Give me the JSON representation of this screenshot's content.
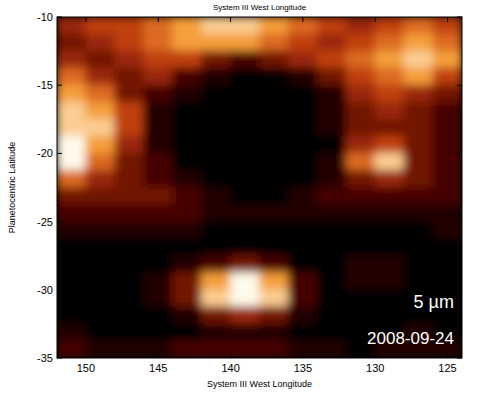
{
  "chart_data": {
    "type": "heatmap",
    "title": "System III West Longitude",
    "x_label": "System III West Longitude",
    "y_label": "Planetocentric Latitude",
    "annotations": [
      "5 µm",
      "2008-09-24"
    ],
    "xlim": [
      152,
      124
    ],
    "xticks": [
      150,
      145,
      140,
      135,
      130,
      125
    ],
    "ylim": [
      -10,
      -35
    ],
    "yticks": [
      -10,
      -15,
      -20,
      -25,
      -30,
      -35
    ],
    "zlim": [
      0,
      9
    ],
    "x": [
      151,
      149,
      147,
      145,
      143,
      141,
      139,
      137,
      135,
      133,
      131,
      129,
      127,
      125
    ],
    "y": [
      -10.625,
      -11.875,
      -13.125,
      -14.375,
      -15.625,
      -16.875,
      -18.125,
      -19.375,
      -20.625,
      -21.875,
      -23.125,
      -24.375,
      -25.625,
      -26.875,
      -28.125,
      -29.375,
      -30.625,
      -31.875,
      -33.125,
      -34.375
    ],
    "cells": [
      [
        4,
        5,
        5,
        6,
        7,
        8,
        8,
        7,
        6,
        5,
        4,
        5,
        6,
        5
      ],
      [
        3,
        4,
        5,
        6,
        7,
        7,
        7,
        6,
        5,
        4,
        5,
        6,
        7,
        6
      ],
      [
        4,
        3,
        4,
        5,
        5,
        3,
        2,
        3,
        4,
        5,
        6,
        7,
        8,
        7
      ],
      [
        6,
        4,
        3,
        4,
        2,
        1,
        0,
        0,
        1,
        3,
        5,
        6,
        7,
        5
      ],
      [
        7,
        6,
        3,
        2,
        1,
        0,
        0,
        0,
        0,
        1,
        4,
        5,
        4,
        3
      ],
      [
        8,
        7,
        5,
        1,
        0,
        0,
        0,
        0,
        0,
        1,
        3,
        4,
        3,
        2
      ],
      [
        8,
        8,
        5,
        1,
        0,
        0,
        0,
        0,
        0,
        1,
        3,
        3,
        3,
        2
      ],
      [
        9,
        7,
        4,
        1,
        0,
        0,
        0,
        0,
        0,
        0,
        4,
        5,
        3,
        2
      ],
      [
        9,
        6,
        3,
        2,
        0,
        0,
        0,
        0,
        0,
        1,
        6,
        8,
        3,
        2
      ],
      [
        6,
        4,
        3,
        2,
        1,
        0,
        0,
        0,
        0,
        1,
        3,
        4,
        3,
        2
      ],
      [
        3,
        3,
        3,
        3,
        2,
        1,
        0,
        0,
        1,
        2,
        2,
        2,
        2,
        2
      ],
      [
        2,
        2,
        2,
        2,
        2,
        1,
        1,
        1,
        1,
        1,
        1,
        1,
        1,
        1
      ],
      [
        1,
        1,
        1,
        1,
        1,
        0,
        0,
        0,
        0,
        0,
        0,
        0,
        0,
        1
      ],
      [
        0,
        0,
        0,
        0,
        0,
        0,
        0,
        0,
        0,
        0,
        0,
        0,
        0,
        0
      ],
      [
        0,
        0,
        0,
        0,
        1,
        2,
        3,
        2,
        0,
        0,
        1,
        1,
        0,
        0
      ],
      [
        0,
        0,
        0,
        1,
        3,
        7,
        9,
        7,
        2,
        0,
        1,
        1,
        0,
        0
      ],
      [
        0,
        0,
        0,
        1,
        3,
        8,
        9,
        8,
        2,
        0,
        0,
        0,
        0,
        0
      ],
      [
        0,
        0,
        0,
        0,
        1,
        3,
        4,
        3,
        1,
        0,
        0,
        0,
        0,
        0
      ],
      [
        1,
        0,
        0,
        0,
        0,
        1,
        1,
        1,
        0,
        0,
        0,
        0,
        1,
        0
      ],
      [
        2,
        1,
        1,
        1,
        2,
        2,
        2,
        2,
        1,
        1,
        0,
        1,
        1,
        1
      ]
    ]
  }
}
